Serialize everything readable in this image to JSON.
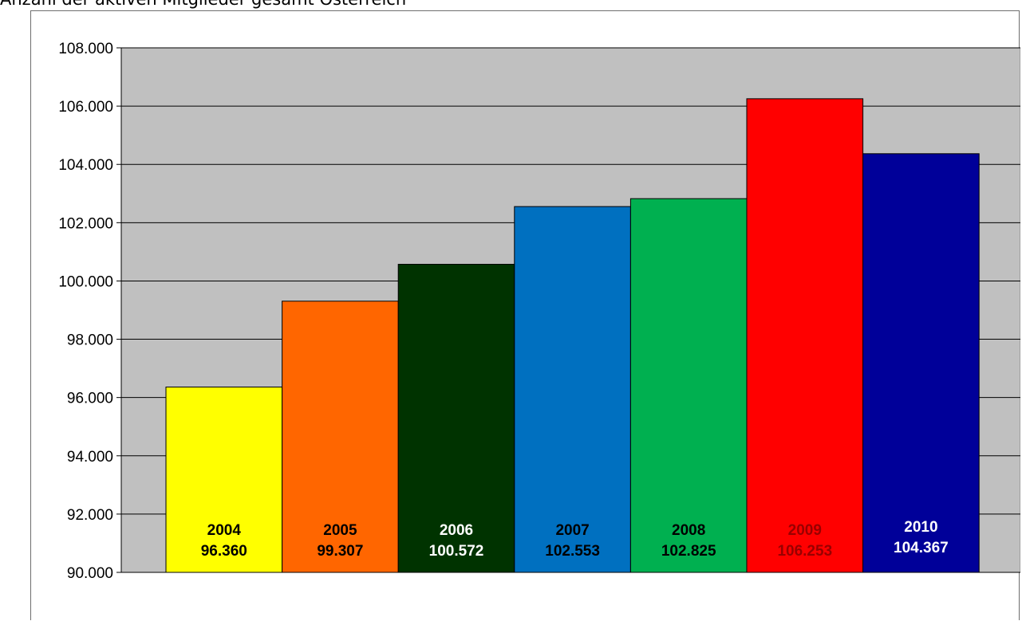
{
  "title": "Anzahl der aktiven Mitglieder gesamt Österreich",
  "chart_data": {
    "type": "bar",
    "title": "",
    "xlabel": "",
    "ylabel": "",
    "ylim": [
      90000,
      108000
    ],
    "yticks": [
      90000,
      92000,
      94000,
      96000,
      98000,
      100000,
      102000,
      104000,
      106000,
      108000
    ],
    "ytick_labels": [
      "90.000",
      "92.000",
      "94.000",
      "96.000",
      "98.000",
      "100.000",
      "102.000",
      "104.000",
      "106.000",
      "108.000"
    ],
    "grid": true,
    "plot_background": "#c0c0c0",
    "categories": [
      "2004",
      "2005",
      "2006",
      "2007",
      "2008",
      "2009",
      "2010"
    ],
    "values": [
      96360,
      99307,
      100572,
      102553,
      102825,
      106253,
      104367
    ],
    "value_labels": [
      "96.360",
      "99.307",
      "100.572",
      "102.553",
      "102.825",
      "106.253",
      "104.367"
    ],
    "colors": [
      "#ffff00",
      "#ff6600",
      "#003300",
      "#0070c0",
      "#00b050",
      "#ff0000",
      "#000099"
    ],
    "label_colors": [
      "#000000",
      "#000000",
      "#ffffff",
      "#000000",
      "#000000",
      "#990000",
      "#ffffff"
    ]
  }
}
